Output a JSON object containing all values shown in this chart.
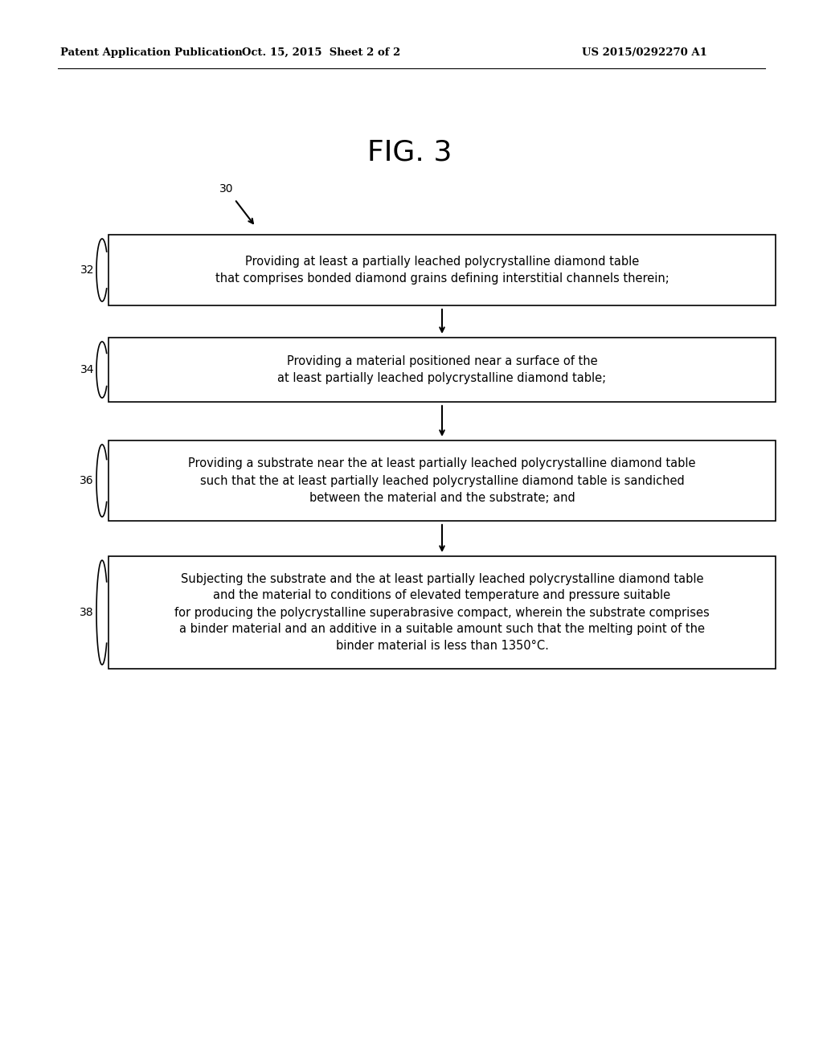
{
  "bg_color": "#ffffff",
  "header_left": "Patent Application Publication",
  "header_center": "Oct. 15, 2015  Sheet 2 of 2",
  "header_right": "US 2015/0292270 A1",
  "fig_label": "FIG. 3",
  "flow_label": "30",
  "steps": [
    {
      "id": "32",
      "text": "Providing at least a partially leached polycrystalline diamond table\nthat comprises bonded diamond grains defining interstitial channels therein;"
    },
    {
      "id": "34",
      "text": "Providing a material positioned near a surface of the\nat least partially leached polycrystalline diamond table;"
    },
    {
      "id": "36",
      "text": "Providing a substrate near the at least partially leached polycrystalline diamond table\nsuch that the at least partially leached polycrystalline diamond table is sandiched\nbetween the material and the substrate; and"
    },
    {
      "id": "38",
      "text": "Subjecting the substrate and the at least partially leached polycrystalline diamond table\nand the material to conditions of elevated temperature and pressure suitable\nfor producing the polycrystalline superabrasive compact, wherein the substrate comprises\na binder material and an additive in a suitable amount such that the melting point of the\nbinder material is less than 1350°C."
    }
  ]
}
